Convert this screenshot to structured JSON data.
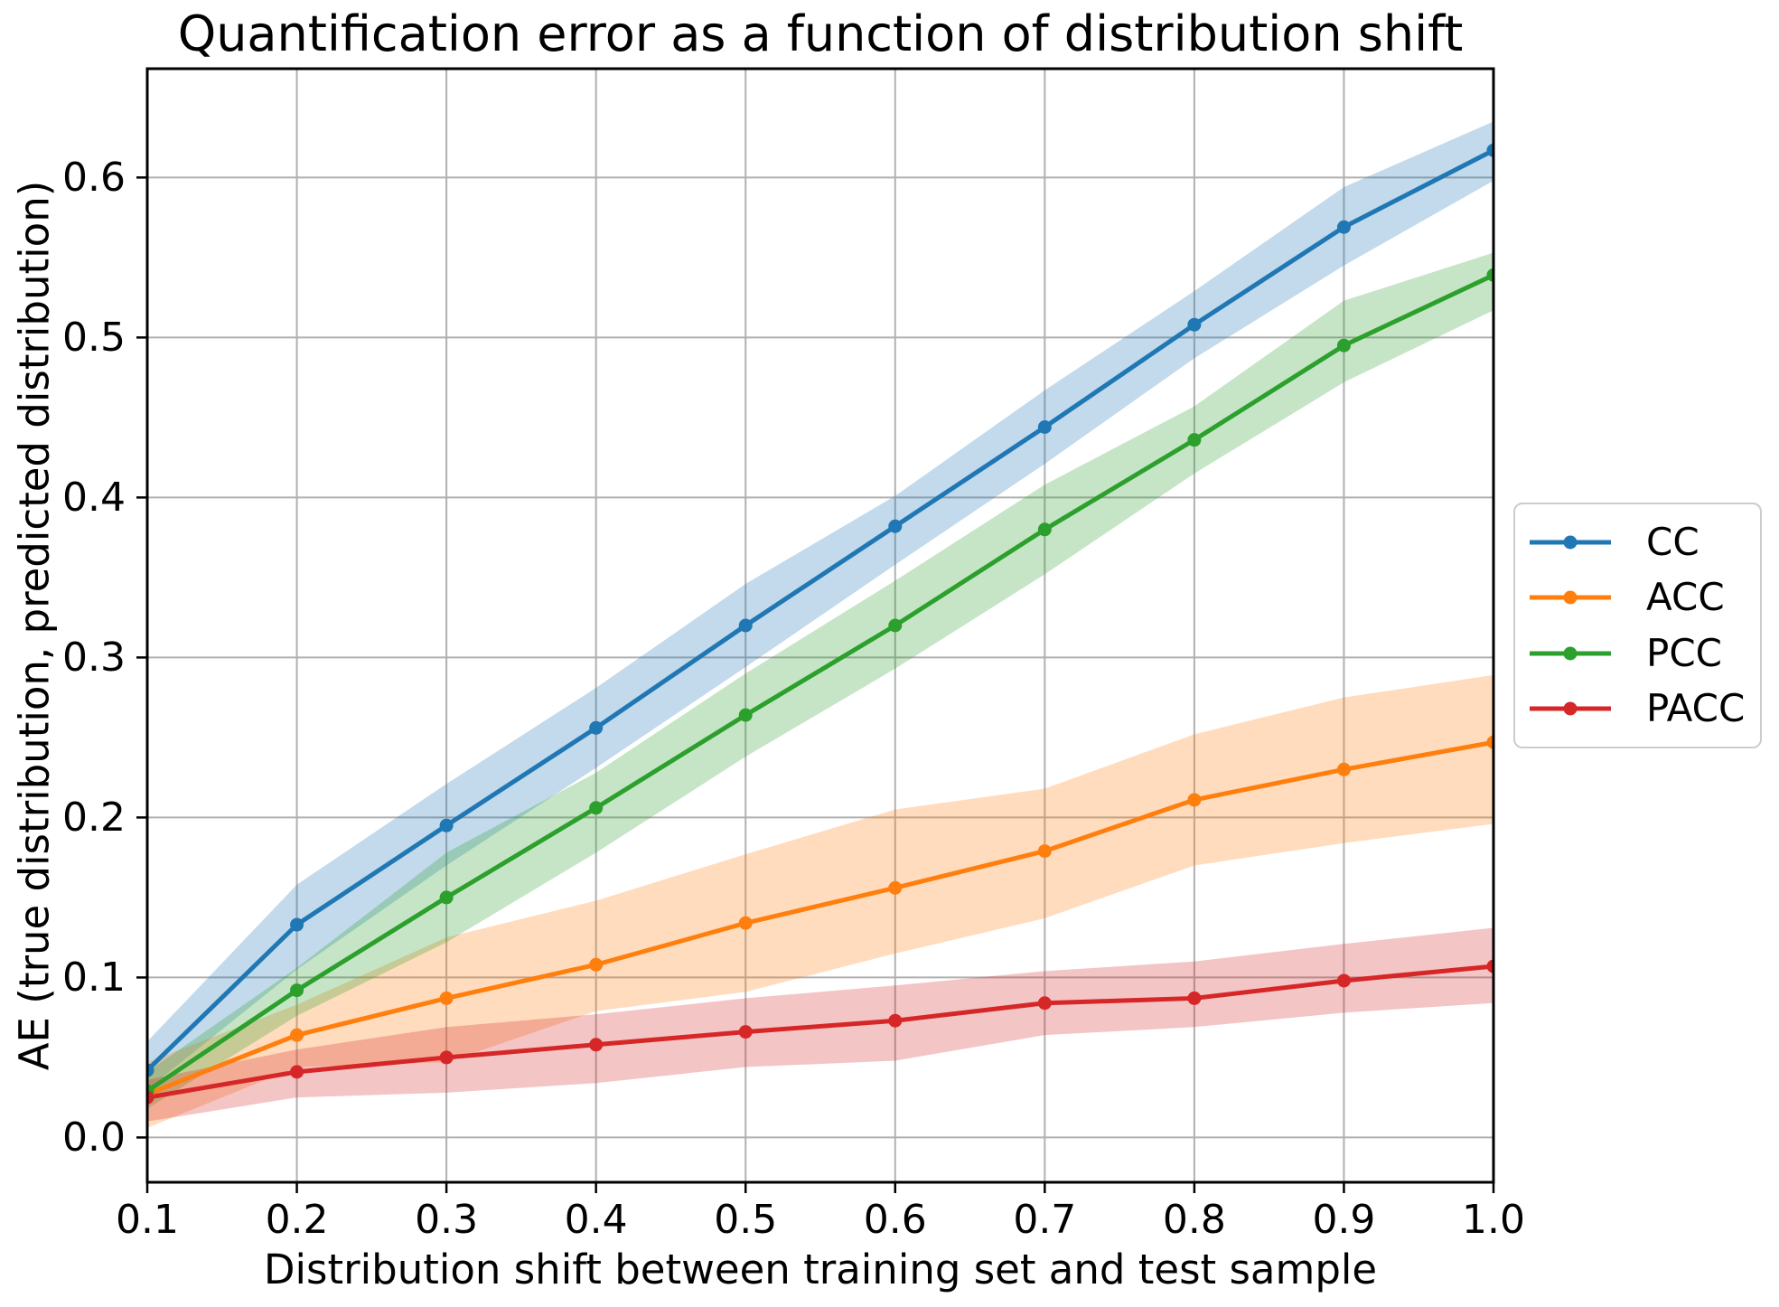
{
  "chart_data": {
    "type": "line",
    "title": "Quantification error as a function of distribution shift",
    "xlabel": "Distribution shift between training set and test sample",
    "ylabel": "AE (true distribution, predicted distribution)",
    "x": [
      0.1,
      0.2,
      0.3,
      0.4,
      0.5,
      0.6,
      0.7,
      0.8,
      0.9,
      1.0
    ],
    "xlim": [
      0.1,
      1.0
    ],
    "ylim": [
      -0.028,
      0.668
    ],
    "xticks": [
      0.1,
      0.2,
      0.3,
      0.4,
      0.5,
      0.6,
      0.7,
      0.8,
      0.9,
      1.0
    ],
    "xtick_labels": [
      "0.1",
      "0.2",
      "0.3",
      "0.4",
      "0.5",
      "0.6",
      "0.7",
      "0.8",
      "0.9",
      "1.0"
    ],
    "yticks": [
      0.0,
      0.1,
      0.2,
      0.3,
      0.4,
      0.5,
      0.6
    ],
    "ytick_labels": [
      "0.0",
      "0.1",
      "0.2",
      "0.3",
      "0.4",
      "0.5",
      "0.6"
    ],
    "grid": true,
    "grid_color": "#b0b0b0",
    "band_opacity": 0.27,
    "legend_position": "center-right-outside",
    "series": [
      {
        "name": "CC",
        "color": "#1f77b4",
        "values": [
          0.042,
          0.133,
          0.195,
          0.256,
          0.32,
          0.382,
          0.444,
          0.508,
          0.569,
          0.617
        ],
        "lower": [
          0.03,
          0.105,
          0.17,
          0.231,
          0.294,
          0.358,
          0.421,
          0.487,
          0.545,
          0.598
        ],
        "upper": [
          0.06,
          0.158,
          0.221,
          0.281,
          0.346,
          0.401,
          0.467,
          0.529,
          0.594,
          0.635
        ]
      },
      {
        "name": "ACC",
        "color": "#ff7f0e",
        "values": [
          0.027,
          0.064,
          0.087,
          0.108,
          0.134,
          0.156,
          0.179,
          0.211,
          0.23,
          0.247
        ],
        "lower": [
          0.006,
          0.044,
          0.047,
          0.079,
          0.091,
          0.115,
          0.137,
          0.17,
          0.184,
          0.196
        ],
        "upper": [
          0.047,
          0.083,
          0.125,
          0.148,
          0.177,
          0.205,
          0.218,
          0.252,
          0.275,
          0.289
        ]
      },
      {
        "name": "PCC",
        "color": "#2ca02c",
        "values": [
          0.029,
          0.092,
          0.15,
          0.206,
          0.264,
          0.32,
          0.38,
          0.436,
          0.495,
          0.539
        ],
        "lower": [
          0.018,
          0.076,
          0.122,
          0.178,
          0.238,
          0.293,
          0.352,
          0.415,
          0.472,
          0.517
        ],
        "upper": [
          0.041,
          0.106,
          0.178,
          0.228,
          0.29,
          0.348,
          0.408,
          0.457,
          0.523,
          0.553
        ]
      },
      {
        "name": "PACC",
        "color": "#d62728",
        "values": [
          0.025,
          0.041,
          0.05,
          0.058,
          0.066,
          0.073,
          0.084,
          0.087,
          0.098,
          0.107
        ],
        "lower": [
          0.01,
          0.025,
          0.028,
          0.034,
          0.044,
          0.048,
          0.064,
          0.069,
          0.078,
          0.084
        ],
        "upper": [
          0.036,
          0.055,
          0.069,
          0.077,
          0.087,
          0.095,
          0.104,
          0.11,
          0.121,
          0.131
        ]
      }
    ]
  }
}
